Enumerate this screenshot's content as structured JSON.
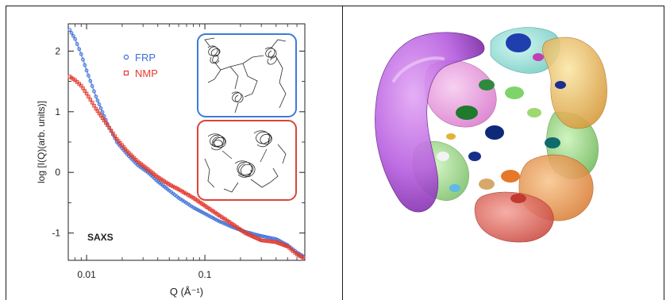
{
  "chart_data": {
    "type": "scatter",
    "xscale": "log",
    "xlim": [
      0.007,
      0.7
    ],
    "ylim": [
      -1.45,
      2.45
    ],
    "xticks": [
      {
        "value": 0.01,
        "label": "0.01"
      },
      {
        "value": 0.1,
        "label": "0.1"
      }
    ],
    "yticks": [
      {
        "value": 2,
        "label": "2"
      },
      {
        "value": 1,
        "label": "1"
      },
      {
        "value": 0,
        "label": "0"
      },
      {
        "value": -1,
        "label": "-1"
      }
    ],
    "xlabel": "Q (Å⁻¹)",
    "ylabel": "log [I(Q)(arb. units)]",
    "annotation": "SAXS",
    "legend_position": "top-center",
    "series": [
      {
        "name": "FRP",
        "color": "#3b6fd6",
        "marker": "circle",
        "x": [
          0.0072,
          0.008,
          0.009,
          0.01,
          0.012,
          0.015,
          0.018,
          0.022,
          0.027,
          0.033,
          0.04,
          0.05,
          0.06,
          0.08,
          0.1,
          0.13,
          0.17,
          0.22,
          0.3,
          0.4,
          0.5,
          0.6,
          0.7
        ],
        "y": [
          2.35,
          2.2,
          1.95,
          1.68,
          1.25,
          0.8,
          0.5,
          0.3,
          0.12,
          0.0,
          -0.15,
          -0.3,
          -0.42,
          -0.58,
          -0.68,
          -0.8,
          -0.9,
          -0.98,
          -1.05,
          -1.1,
          -1.2,
          -1.32,
          -1.4
        ]
      },
      {
        "name": "NMP",
        "color": "#e23a2e",
        "marker": "square",
        "x": [
          0.0072,
          0.008,
          0.009,
          0.01,
          0.012,
          0.015,
          0.018,
          0.022,
          0.027,
          0.033,
          0.04,
          0.05,
          0.06,
          0.08,
          0.1,
          0.13,
          0.17,
          0.22,
          0.3,
          0.4,
          0.5,
          0.6,
          0.7
        ],
        "y": [
          1.58,
          1.52,
          1.43,
          1.3,
          1.05,
          0.78,
          0.55,
          0.35,
          0.18,
          0.05,
          -0.08,
          -0.2,
          -0.28,
          -0.42,
          -0.55,
          -0.7,
          -0.85,
          -1.0,
          -1.12,
          -1.15,
          -1.22,
          -1.35,
          -1.42
        ]
      }
    ]
  },
  "insets": [
    {
      "name": "FRP",
      "color": "#3b7dd8"
    },
    {
      "name": "NMP",
      "color": "#d9463a"
    }
  ]
}
